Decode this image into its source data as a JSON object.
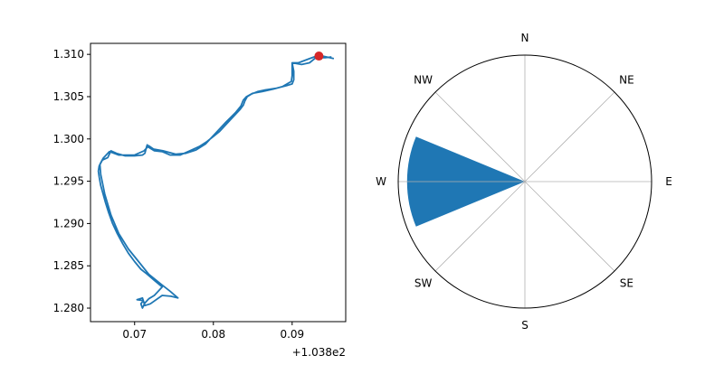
{
  "chart_data": [
    {
      "type": "line",
      "x_offset_label": "+1.038e2",
      "xticks": [
        {
          "value": 103.87,
          "label": "0.07"
        },
        {
          "value": 103.88,
          "label": "0.08"
        },
        {
          "value": 103.89,
          "label": "0.09"
        }
      ],
      "yticks": [
        {
          "value": 1.28,
          "label": "1.280"
        },
        {
          "value": 1.285,
          "label": "1.285"
        },
        {
          "value": 1.29,
          "label": "1.290"
        },
        {
          "value": 1.295,
          "label": "1.295"
        },
        {
          "value": 1.3,
          "label": "1.300"
        },
        {
          "value": 1.305,
          "label": "1.305"
        },
        {
          "value": 1.31,
          "label": "1.310"
        }
      ],
      "xlim": [
        103.8644,
        103.8968
      ],
      "ylim": [
        1.2784,
        1.3113
      ],
      "grid": false,
      "series": [
        {
          "color": "#1f77b4",
          "points": [
            [
              103.8953,
              1.3095
            ],
            [
              103.8934,
              1.3099
            ],
            [
              103.8922,
              1.3095
            ],
            [
              103.8908,
              1.309
            ],
            [
              103.89,
              1.309
            ],
            [
              103.8902,
              1.308
            ],
            [
              103.8902,
              1.307
            ],
            [
              103.89,
              1.3065
            ],
            [
              103.8893,
              1.3063
            ],
            [
              103.888,
              1.306
            ],
            [
              103.8866,
              1.3058
            ],
            [
              103.8856,
              1.3056
            ],
            [
              103.8848,
              1.3053
            ],
            [
              103.8843,
              1.305
            ],
            [
              103.884,
              1.3045
            ],
            [
              103.8838,
              1.304
            ],
            [
              103.8834,
              1.3035
            ],
            [
              103.8826,
              1.3027
            ],
            [
              103.8818,
              1.3019
            ],
            [
              103.8808,
              1.3009
            ],
            [
              103.88,
              1.3003
            ],
            [
              103.8792,
              1.2997
            ],
            [
              103.8782,
              1.2991
            ],
            [
              103.877,
              1.2986
            ],
            [
              103.8758,
              1.2981
            ],
            [
              103.8745,
              1.2981
            ],
            [
              103.8735,
              1.2985
            ],
            [
              103.8725,
              1.2986
            ],
            [
              103.8718,
              1.299
            ],
            [
              103.8716,
              1.2993
            ],
            [
              103.8715,
              1.299
            ],
            [
              103.8713,
              1.2983
            ],
            [
              103.871,
              1.2981
            ],
            [
              103.87,
              1.298
            ],
            [
              103.8688,
              1.298
            ],
            [
              103.8677,
              1.2983
            ],
            [
              103.867,
              1.2986
            ],
            [
              103.8666,
              1.2978
            ],
            [
              103.8659,
              1.2975
            ],
            [
              103.8655,
              1.2968
            ],
            [
              103.8654,
              1.2962
            ],
            [
              103.8655,
              1.2955
            ],
            [
              103.8657,
              1.2945
            ],
            [
              103.866,
              1.2935
            ],
            [
              103.8663,
              1.2925
            ],
            [
              103.8667,
              1.2913
            ],
            [
              103.8672,
              1.29
            ],
            [
              103.8678,
              1.2888
            ],
            [
              103.8685,
              1.2876
            ],
            [
              103.8692,
              1.2865
            ],
            [
              103.87,
              1.2855
            ],
            [
              103.8708,
              1.2846
            ],
            [
              103.8716,
              1.284
            ],
            [
              103.8726,
              1.2832
            ],
            [
              103.8735,
              1.2825
            ],
            [
              103.873,
              1.282
            ],
            [
              103.8725,
              1.2815
            ],
            [
              103.8718,
              1.2811
            ],
            [
              103.8713,
              1.2806
            ],
            [
              103.871,
              1.28
            ],
            [
              103.8708,
              1.2805
            ],
            [
              103.8711,
              1.2809
            ],
            [
              103.8703,
              1.281
            ],
            [
              103.871,
              1.2812
            ],
            [
              103.8713,
              1.2803
            ],
            [
              103.872,
              1.2805
            ],
            [
              103.8735,
              1.2815
            ],
            [
              103.8746,
              1.2814
            ],
            [
              103.8755,
              1.2812
            ],
            [
              103.8745,
              1.282
            ],
            [
              103.8734,
              1.2828
            ],
            [
              103.8718,
              1.284
            ],
            [
              103.8705,
              1.2855
            ],
            [
              103.8692,
              1.287
            ],
            [
              103.868,
              1.2888
            ],
            [
              103.867,
              1.291
            ],
            [
              103.8662,
              1.2935
            ],
            [
              103.8657,
              1.2958
            ],
            [
              103.8656,
              1.297
            ],
            [
              103.866,
              1.2977
            ],
            [
              103.8668,
              1.2985
            ],
            [
              103.868,
              1.2981
            ],
            [
              103.87,
              1.2981
            ],
            [
              103.8712,
              1.2986
            ],
            [
              103.8718,
              1.2992
            ],
            [
              103.8724,
              1.2988
            ],
            [
              103.8736,
              1.2986
            ],
            [
              103.8752,
              1.2982
            ],
            [
              103.8765,
              1.2983
            ],
            [
              103.8778,
              1.2987
            ],
            [
              103.879,
              1.2994
            ],
            [
              103.8802,
              1.3006
            ],
            [
              103.8816,
              1.302
            ],
            [
              103.8828,
              1.3031
            ],
            [
              103.8835,
              1.3039
            ],
            [
              103.8838,
              1.3046
            ],
            [
              103.8842,
              1.305
            ],
            [
              103.885,
              1.3054
            ],
            [
              103.8862,
              1.3056
            ],
            [
              103.8876,
              1.3059
            ],
            [
              103.8888,
              1.3062
            ],
            [
              103.8899,
              1.3068
            ],
            [
              103.89,
              1.3075
            ],
            [
              103.89,
              1.309
            ],
            [
              103.8912,
              1.3088
            ],
            [
              103.8922,
              1.309
            ],
            [
              103.893,
              1.3096
            ],
            [
              103.8942,
              1.3096
            ],
            [
              103.895,
              1.3097
            ]
          ]
        },
        {
          "color": "#d62728",
          "points": [
            [
              103.8934,
              1.3098
            ]
          ],
          "marker": "dot"
        }
      ]
    },
    {
      "type": "polar-histogram",
      "direction_labels": [
        "N",
        "NE",
        "E",
        "SE",
        "S",
        "SW",
        "W",
        "NW"
      ],
      "bins_deg_clockwise_from_north": [
        [
          247.5,
          292.5
        ]
      ],
      "bin_fill": "#1f77b4",
      "radial_fraction": 0.93,
      "grid": true
    }
  ]
}
